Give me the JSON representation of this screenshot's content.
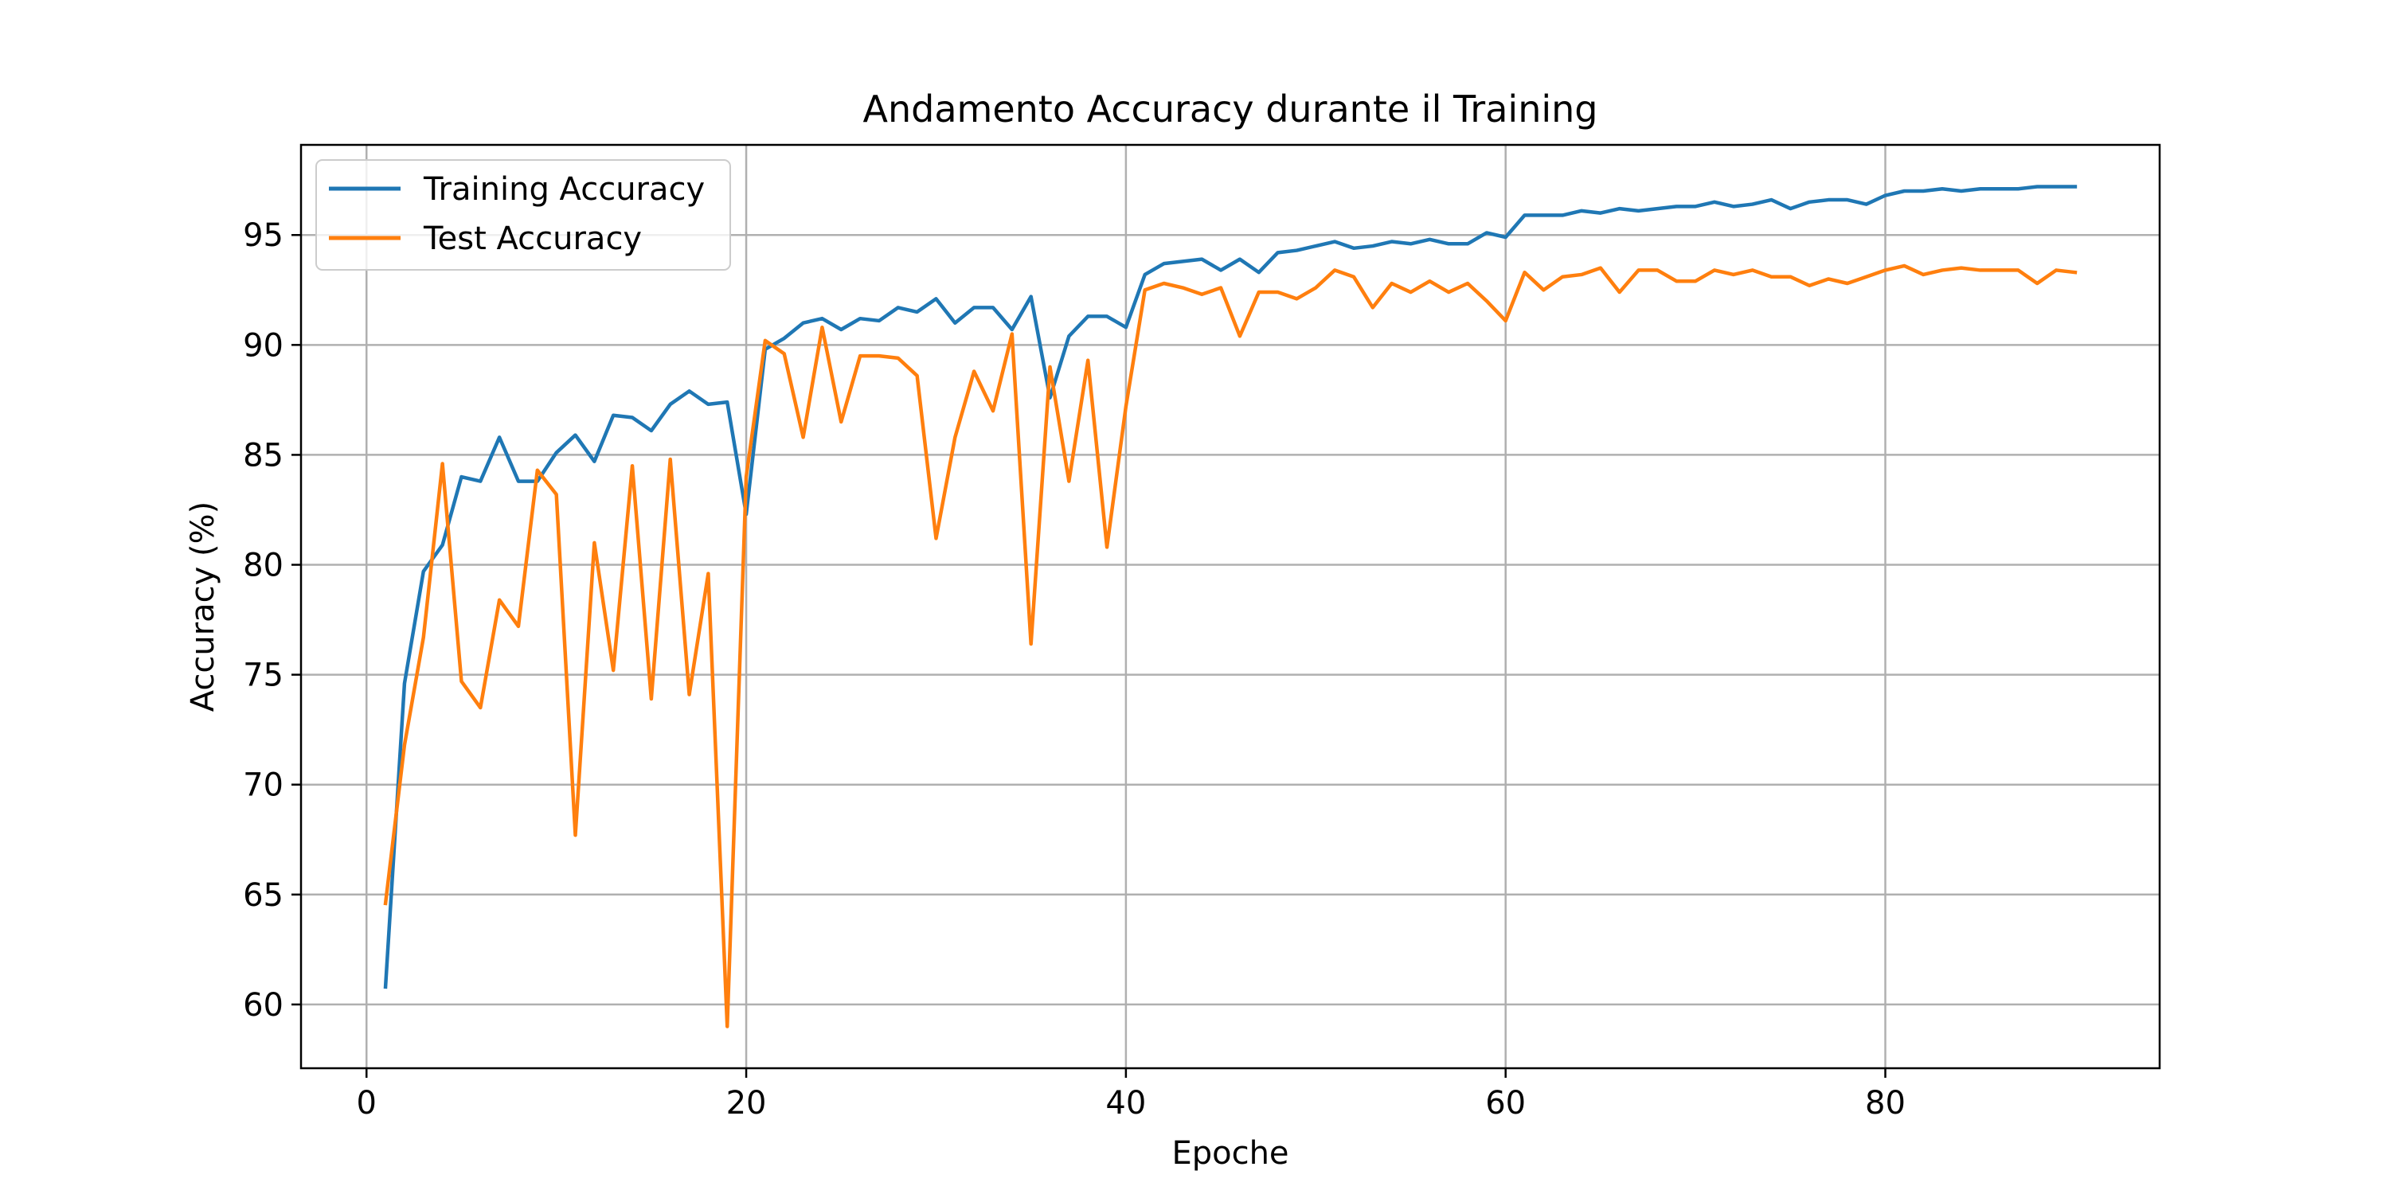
{
  "chart_data": {
    "type": "line",
    "title": "Andamento Accuracy durante il Training",
    "xlabel": "Epoche",
    "ylabel": "Accuracy (%)",
    "xlim": [
      -3.45,
      94.45
    ],
    "ylim": [
      57.1,
      99.1
    ],
    "xticks": [
      0,
      20,
      40,
      60,
      80
    ],
    "yticks": [
      60,
      65,
      70,
      75,
      80,
      85,
      90,
      95
    ],
    "grid": true,
    "legend_position": "upper left",
    "x": [
      1,
      2,
      3,
      4,
      5,
      6,
      7,
      8,
      9,
      10,
      11,
      12,
      13,
      14,
      15,
      16,
      17,
      18,
      19,
      20,
      21,
      22,
      23,
      24,
      25,
      26,
      27,
      28,
      29,
      30,
      31,
      32,
      33,
      34,
      35,
      36,
      37,
      38,
      39,
      40,
      41,
      42,
      43,
      44,
      45,
      46,
      47,
      48,
      49,
      50,
      51,
      52,
      53,
      54,
      55,
      56,
      57,
      58,
      59,
      60,
      61,
      62,
      63,
      64,
      65,
      66,
      67,
      68,
      69,
      70,
      71,
      72,
      73,
      74,
      75,
      76,
      77,
      78,
      79,
      80,
      81,
      82,
      83,
      84,
      85,
      86,
      87,
      88,
      89,
      90
    ],
    "series": [
      {
        "name": "Training Accuracy",
        "color": "#1f77b4",
        "values": [
          60.8,
          74.6,
          79.7,
          80.9,
          84.0,
          83.8,
          85.8,
          83.8,
          83.8,
          85.1,
          85.9,
          84.7,
          86.8,
          86.7,
          86.1,
          87.3,
          87.9,
          87.3,
          87.4,
          82.3,
          89.8,
          90.3,
          91.0,
          91.2,
          90.7,
          91.2,
          91.1,
          91.7,
          91.5,
          92.1,
          91.0,
          91.7,
          91.7,
          90.7,
          92.2,
          87.6,
          90.4,
          91.3,
          91.3,
          90.8,
          93.2,
          93.7,
          93.8,
          93.9,
          93.4,
          93.9,
          93.3,
          94.2,
          94.3,
          94.5,
          94.7,
          94.4,
          94.5,
          94.7,
          94.6,
          94.8,
          94.6,
          94.6,
          95.1,
          94.9,
          95.9,
          95.9,
          95.9,
          96.1,
          96.0,
          96.2,
          96.1,
          96.2,
          96.3,
          96.3,
          96.5,
          96.3,
          96.4,
          96.6,
          96.2,
          96.5,
          96.6,
          96.6,
          96.4,
          96.8,
          97.0,
          97.0,
          97.1,
          97.0,
          97.1,
          97.1,
          97.1,
          97.2,
          97.2,
          97.2
        ]
      },
      {
        "name": "Test Accuracy",
        "color": "#ff7f0e",
        "values": [
          64.6,
          71.8,
          76.7,
          84.6,
          74.7,
          73.5,
          78.4,
          77.2,
          84.3,
          83.2,
          67.7,
          81.0,
          75.2,
          84.5,
          73.9,
          84.8,
          74.1,
          79.6,
          59.0,
          84.0,
          90.2,
          89.6,
          85.8,
          90.8,
          86.5,
          89.5,
          89.5,
          89.4,
          88.6,
          81.2,
          85.8,
          88.8,
          87.0,
          90.5,
          76.4,
          89.0,
          83.8,
          89.3,
          80.8,
          87.2,
          92.5,
          92.8,
          92.6,
          92.3,
          92.6,
          90.4,
          92.4,
          92.4,
          92.1,
          92.6,
          93.4,
          93.1,
          91.7,
          92.8,
          92.4,
          92.9,
          92.4,
          92.8,
          92.0,
          91.1,
          93.3,
          92.5,
          93.1,
          93.2,
          93.5,
          92.4,
          93.4,
          93.4,
          92.9,
          92.9,
          93.4,
          93.2,
          93.4,
          93.1,
          93.1,
          92.7,
          93.0,
          92.8,
          93.1,
          93.4,
          93.6,
          93.2,
          93.4,
          93.5,
          93.4,
          93.4,
          93.4,
          92.8,
          93.4,
          93.3
        ]
      }
    ]
  }
}
